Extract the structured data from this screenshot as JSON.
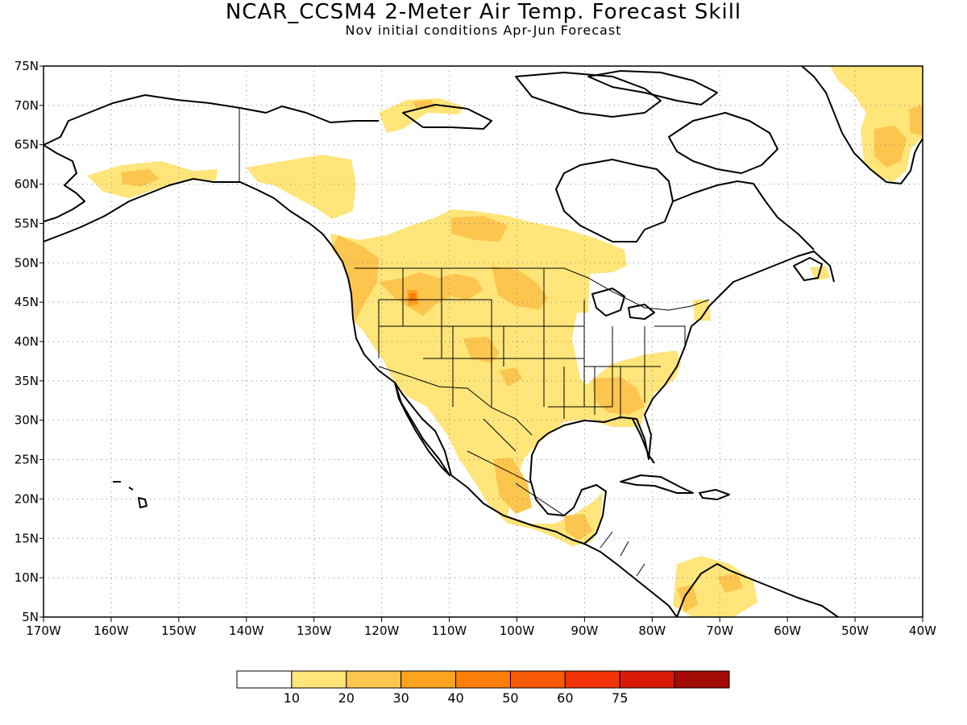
{
  "title": "NCAR_CCSM4 2-Meter Air Temp. Forecast Skill",
  "subtitle": "Nov initial conditions  Apr-Jun Forecast",
  "map": {
    "lon_range": [
      -170,
      -40
    ],
    "lat_range": [
      5,
      75
    ],
    "lon_ticks": [
      "170W",
      "160W",
      "150W",
      "140W",
      "130W",
      "120W",
      "110W",
      "100W",
      "90W",
      "80W",
      "70W",
      "60W",
      "50W",
      "40W"
    ],
    "lat_ticks": [
      "5N",
      "10N",
      "15N",
      "20N",
      "25N",
      "30N",
      "35N",
      "40N",
      "45N",
      "50N",
      "55N",
      "60N",
      "65N",
      "70N",
      "75N"
    ],
    "grid": true
  },
  "colorbar": {
    "labels": [
      "10",
      "20",
      "30",
      "40",
      "50",
      "60",
      "75"
    ],
    "colors": [
      "#ffffff",
      "#ffe57a",
      "#fcc54e",
      "#fba31f",
      "#fb7d0a",
      "#f95a08",
      "#f33308",
      "#d81a08",
      "#a20b06"
    ]
  }
}
